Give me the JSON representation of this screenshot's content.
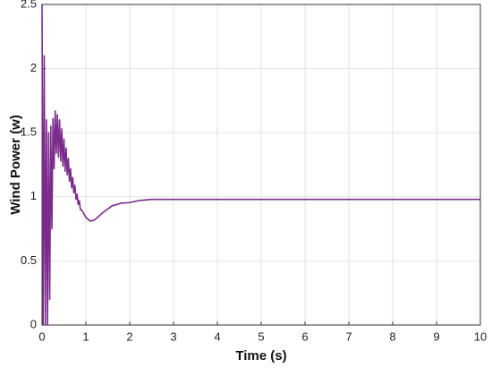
{
  "chart_data": {
    "type": "line",
    "xlabel": "Time (s)",
    "ylabel": "Wind Power (w)",
    "x": [
      0,
      0.025,
      0.05,
      0.075,
      0.1,
      0.125,
      0.15,
      0.175,
      0.2,
      0.225,
      0.25,
      0.275,
      0.3,
      0.325,
      0.35,
      0.375,
      0.4,
      0.425,
      0.45,
      0.475,
      0.5,
      0.525,
      0.55,
      0.575,
      0.6,
      0.625,
      0.65,
      0.675,
      0.7,
      0.725,
      0.75,
      0.775,
      0.8,
      0.825,
      0.85,
      0.875,
      0.9,
      1.0,
      1.1,
      1.2,
      1.4,
      1.6,
      1.8,
      2.0,
      2.2,
      2.5,
      3,
      10
    ],
    "series": [
      {
        "color": "#7b2b8b",
        "values": [
          2.5,
          0,
          2.1,
          0,
          1.6,
          0,
          1.5,
          0.2,
          1.55,
          0.75,
          1.61,
          1.22,
          1.67,
          1.34,
          1.64,
          1.31,
          1.6,
          1.28,
          1.53,
          1.24,
          1.45,
          1.2,
          1.38,
          1.17,
          1.3,
          1.12,
          1.22,
          1.07,
          1.15,
          1.03,
          1.09,
          0.98,
          1.02,
          0.94,
          0.97,
          0.9,
          0.9,
          0.84,
          0.81,
          0.82,
          0.88,
          0.93,
          0.95,
          0.955,
          0.97,
          0.98,
          0.98,
          0.98
        ]
      }
    ],
    "xlim": [
      0,
      10
    ],
    "xticks": [
      0,
      1,
      2,
      3,
      4,
      5,
      6,
      7,
      8,
      9,
      10
    ],
    "ylim": [
      0,
      2.5
    ],
    "yticks": [
      0,
      0.5,
      1,
      1.5,
      2,
      2.5
    ],
    "grid": true
  }
}
